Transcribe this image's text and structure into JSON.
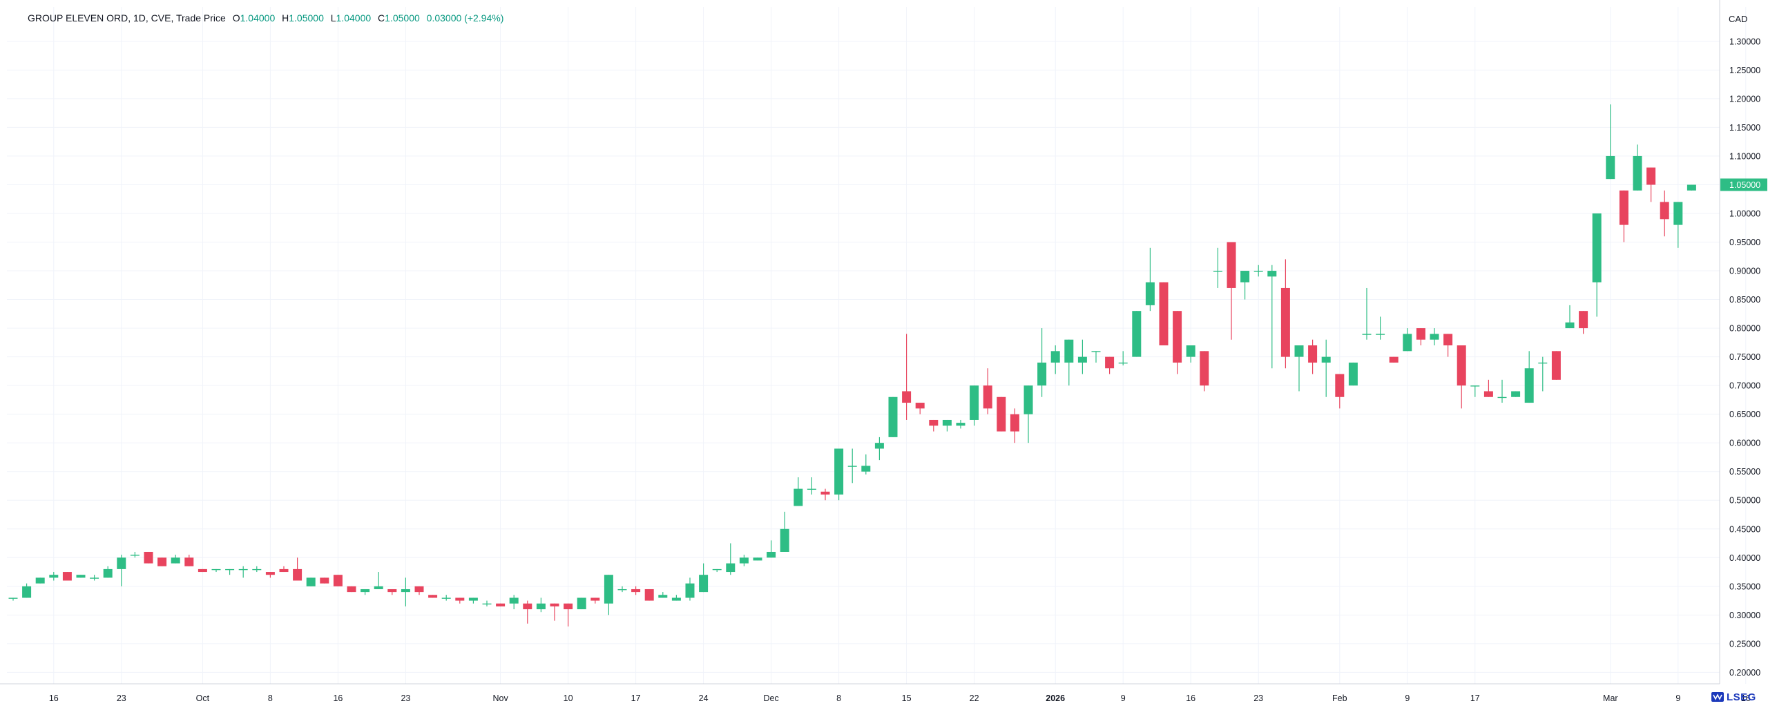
{
  "header": {
    "symbol": "GROUP ELEVEN ORD, 1D, CVE, Trade Price",
    "open_label": "O",
    "open": "1.04000",
    "high_label": "H",
    "high": "1.05000",
    "low_label": "L",
    "low": "1.04000",
    "close_label": "C",
    "close": "1.05000",
    "change": "0.03000 (+2.94%)"
  },
  "currency": "CAD",
  "logo_text": "LSEG",
  "colors": {
    "up": "#2ebd85",
    "down": "#e8445e",
    "grid": "#f0f3fa",
    "axis_text": "#131722",
    "last_price_bg": "#2ebd85"
  },
  "chart_data": {
    "type": "candlestick",
    "title": "GROUP ELEVEN ORD, 1D, CVE, Trade Price",
    "ylabel": "CAD",
    "ylim": [
      0.18,
      1.36
    ],
    "yticks": [
      "0.20000",
      "0.25000",
      "0.30000",
      "0.35000",
      "0.40000",
      "0.45000",
      "0.50000",
      "0.55000",
      "0.60000",
      "0.65000",
      "0.70000",
      "0.75000",
      "0.80000",
      "0.85000",
      "0.90000",
      "0.95000",
      "1.00000",
      "1.05000",
      "1.10000",
      "1.15000",
      "1.20000",
      "1.25000",
      "1.30000"
    ],
    "xticks": [
      {
        "label": "16",
        "i": 3
      },
      {
        "label": "23",
        "i": 8
      },
      {
        "label": "Oct",
        "i": 14
      },
      {
        "label": "8",
        "i": 19
      },
      {
        "label": "16",
        "i": 24
      },
      {
        "label": "23",
        "i": 29
      },
      {
        "label": "Nov",
        "i": 36
      },
      {
        "label": "10",
        "i": 41
      },
      {
        "label": "17",
        "i": 46
      },
      {
        "label": "24",
        "i": 51
      },
      {
        "label": "Dec",
        "i": 56
      },
      {
        "label": "8",
        "i": 61
      },
      {
        "label": "15",
        "i": 66
      },
      {
        "label": "22",
        "i": 71
      },
      {
        "label": "2026",
        "i": 77
      },
      {
        "label": "9",
        "i": 82
      },
      {
        "label": "16",
        "i": 87
      },
      {
        "label": "23",
        "i": 92
      },
      {
        "label": "Feb",
        "i": 98
      },
      {
        "label": "9",
        "i": 103
      },
      {
        "label": "17",
        "i": 108
      },
      {
        "label": "Mar",
        "i": 118
      },
      {
        "label": "9",
        "i": 123
      },
      {
        "label": "16",
        "i": 128
      }
    ],
    "last_price": "1.05000",
    "candles": [
      {
        "o": 0.33,
        "h": 0.33,
        "l": 0.325,
        "c": 0.33
      },
      {
        "o": 0.33,
        "h": 0.355,
        "l": 0.33,
        "c": 0.35
      },
      {
        "o": 0.355,
        "h": 0.365,
        "l": 0.355,
        "c": 0.365
      },
      {
        "o": 0.365,
        "h": 0.375,
        "l": 0.36,
        "c": 0.37
      },
      {
        "o": 0.375,
        "h": 0.375,
        "l": 0.36,
        "c": 0.36
      },
      {
        "o": 0.365,
        "h": 0.37,
        "l": 0.365,
        "c": 0.37
      },
      {
        "o": 0.365,
        "h": 0.37,
        "l": 0.36,
        "c": 0.365
      },
      {
        "o": 0.365,
        "h": 0.385,
        "l": 0.365,
        "c": 0.38
      },
      {
        "o": 0.38,
        "h": 0.405,
        "l": 0.35,
        "c": 0.4
      },
      {
        "o": 0.405,
        "h": 0.41,
        "l": 0.4,
        "c": 0.405
      },
      {
        "o": 0.41,
        "h": 0.41,
        "l": 0.39,
        "c": 0.39
      },
      {
        "o": 0.4,
        "h": 0.4,
        "l": 0.385,
        "c": 0.385
      },
      {
        "o": 0.39,
        "h": 0.405,
        "l": 0.39,
        "c": 0.4
      },
      {
        "o": 0.4,
        "h": 0.405,
        "l": 0.385,
        "c": 0.385
      },
      {
        "o": 0.38,
        "h": 0.38,
        "l": 0.375,
        "c": 0.375
      },
      {
        "o": 0.38,
        "h": 0.38,
        "l": 0.375,
        "c": 0.38
      },
      {
        "o": 0.38,
        "h": 0.38,
        "l": 0.37,
        "c": 0.38
      },
      {
        "o": 0.38,
        "h": 0.385,
        "l": 0.365,
        "c": 0.38
      },
      {
        "o": 0.38,
        "h": 0.385,
        "l": 0.375,
        "c": 0.38
      },
      {
        "o": 0.375,
        "h": 0.375,
        "l": 0.365,
        "c": 0.37
      },
      {
        "o": 0.38,
        "h": 0.385,
        "l": 0.375,
        "c": 0.375
      },
      {
        "o": 0.38,
        "h": 0.4,
        "l": 0.36,
        "c": 0.36
      },
      {
        "o": 0.35,
        "h": 0.365,
        "l": 0.35,
        "c": 0.365
      },
      {
        "o": 0.365,
        "h": 0.365,
        "l": 0.355,
        "c": 0.355
      },
      {
        "o": 0.37,
        "h": 0.37,
        "l": 0.35,
        "c": 0.35
      },
      {
        "o": 0.35,
        "h": 0.35,
        "l": 0.34,
        "c": 0.34
      },
      {
        "o": 0.34,
        "h": 0.345,
        "l": 0.335,
        "c": 0.345
      },
      {
        "o": 0.345,
        "h": 0.375,
        "l": 0.345,
        "c": 0.35
      },
      {
        "o": 0.345,
        "h": 0.345,
        "l": 0.335,
        "c": 0.34
      },
      {
        "o": 0.34,
        "h": 0.365,
        "l": 0.315,
        "c": 0.345
      },
      {
        "o": 0.35,
        "h": 0.35,
        "l": 0.335,
        "c": 0.34
      },
      {
        "o": 0.335,
        "h": 0.335,
        "l": 0.33,
        "c": 0.33
      },
      {
        "o": 0.33,
        "h": 0.335,
        "l": 0.325,
        "c": 0.33
      },
      {
        "o": 0.33,
        "h": 0.33,
        "l": 0.32,
        "c": 0.325
      },
      {
        "o": 0.325,
        "h": 0.33,
        "l": 0.32,
        "c": 0.33
      },
      {
        "o": 0.32,
        "h": 0.325,
        "l": 0.315,
        "c": 0.32
      },
      {
        "o": 0.32,
        "h": 0.32,
        "l": 0.315,
        "c": 0.315
      },
      {
        "o": 0.32,
        "h": 0.335,
        "l": 0.31,
        "c": 0.33
      },
      {
        "o": 0.32,
        "h": 0.325,
        "l": 0.285,
        "c": 0.31
      },
      {
        "o": 0.31,
        "h": 0.33,
        "l": 0.305,
        "c": 0.32
      },
      {
        "o": 0.32,
        "h": 0.32,
        "l": 0.29,
        "c": 0.315
      },
      {
        "o": 0.32,
        "h": 0.32,
        "l": 0.28,
        "c": 0.31
      },
      {
        "o": 0.31,
        "h": 0.33,
        "l": 0.31,
        "c": 0.33
      },
      {
        "o": 0.33,
        "h": 0.33,
        "l": 0.32,
        "c": 0.325
      },
      {
        "o": 0.32,
        "h": 0.37,
        "l": 0.3,
        "c": 0.37
      },
      {
        "o": 0.345,
        "h": 0.35,
        "l": 0.34,
        "c": 0.345
      },
      {
        "o": 0.345,
        "h": 0.35,
        "l": 0.335,
        "c": 0.34
      },
      {
        "o": 0.345,
        "h": 0.345,
        "l": 0.325,
        "c": 0.325
      },
      {
        "o": 0.33,
        "h": 0.34,
        "l": 0.33,
        "c": 0.335
      },
      {
        "o": 0.325,
        "h": 0.335,
        "l": 0.325,
        "c": 0.33
      },
      {
        "o": 0.33,
        "h": 0.365,
        "l": 0.325,
        "c": 0.355
      },
      {
        "o": 0.34,
        "h": 0.39,
        "l": 0.34,
        "c": 0.37
      },
      {
        "o": 0.38,
        "h": 0.38,
        "l": 0.375,
        "c": 0.38
      },
      {
        "o": 0.375,
        "h": 0.425,
        "l": 0.37,
        "c": 0.39
      },
      {
        "o": 0.39,
        "h": 0.405,
        "l": 0.385,
        "c": 0.4
      },
      {
        "o": 0.395,
        "h": 0.4,
        "l": 0.395,
        "c": 0.4
      },
      {
        "o": 0.4,
        "h": 0.43,
        "l": 0.4,
        "c": 0.41
      },
      {
        "o": 0.41,
        "h": 0.48,
        "l": 0.41,
        "c": 0.45
      },
      {
        "o": 0.49,
        "h": 0.54,
        "l": 0.49,
        "c": 0.52
      },
      {
        "o": 0.52,
        "h": 0.54,
        "l": 0.51,
        "c": 0.52
      },
      {
        "o": 0.515,
        "h": 0.52,
        "l": 0.5,
        "c": 0.51
      },
      {
        "o": 0.51,
        "h": 0.59,
        "l": 0.5,
        "c": 0.59
      },
      {
        "o": 0.56,
        "h": 0.59,
        "l": 0.53,
        "c": 0.56
      },
      {
        "o": 0.55,
        "h": 0.58,
        "l": 0.545,
        "c": 0.56
      },
      {
        "o": 0.59,
        "h": 0.61,
        "l": 0.57,
        "c": 0.6
      },
      {
        "o": 0.61,
        "h": 0.68,
        "l": 0.61,
        "c": 0.68
      },
      {
        "o": 0.69,
        "h": 0.79,
        "l": 0.64,
        "c": 0.67
      },
      {
        "o": 0.67,
        "h": 0.67,
        "l": 0.65,
        "c": 0.66
      },
      {
        "o": 0.64,
        "h": 0.64,
        "l": 0.62,
        "c": 0.63
      },
      {
        "o": 0.63,
        "h": 0.64,
        "l": 0.62,
        "c": 0.64
      },
      {
        "o": 0.63,
        "h": 0.64,
        "l": 0.625,
        "c": 0.635
      },
      {
        "o": 0.64,
        "h": 0.7,
        "l": 0.63,
        "c": 0.7
      },
      {
        "o": 0.7,
        "h": 0.73,
        "l": 0.65,
        "c": 0.66
      },
      {
        "o": 0.68,
        "h": 0.68,
        "l": 0.62,
        "c": 0.62
      },
      {
        "o": 0.65,
        "h": 0.66,
        "l": 0.6,
        "c": 0.62
      },
      {
        "o": 0.65,
        "h": 0.7,
        "l": 0.6,
        "c": 0.7
      },
      {
        "o": 0.7,
        "h": 0.8,
        "l": 0.68,
        "c": 0.74
      },
      {
        "o": 0.74,
        "h": 0.77,
        "l": 0.72,
        "c": 0.76
      },
      {
        "o": 0.74,
        "h": 0.78,
        "l": 0.7,
        "c": 0.78
      },
      {
        "o": 0.74,
        "h": 0.78,
        "l": 0.72,
        "c": 0.75
      },
      {
        "o": 0.76,
        "h": 0.76,
        "l": 0.74,
        "c": 0.76
      },
      {
        "o": 0.75,
        "h": 0.75,
        "l": 0.72,
        "c": 0.73
      },
      {
        "o": 0.74,
        "h": 0.76,
        "l": 0.735,
        "c": 0.74
      },
      {
        "o": 0.75,
        "h": 0.83,
        "l": 0.75,
        "c": 0.83
      },
      {
        "o": 0.84,
        "h": 0.94,
        "l": 0.83,
        "c": 0.88
      },
      {
        "o": 0.88,
        "h": 0.88,
        "l": 0.77,
        "c": 0.77
      },
      {
        "o": 0.83,
        "h": 0.83,
        "l": 0.72,
        "c": 0.74
      },
      {
        "o": 0.75,
        "h": 0.77,
        "l": 0.74,
        "c": 0.77
      },
      {
        "o": 0.76,
        "h": 0.76,
        "l": 0.69,
        "c": 0.7
      },
      {
        "o": 0.9,
        "h": 0.94,
        "l": 0.87,
        "c": 0.9
      },
      {
        "o": 0.95,
        "h": 0.95,
        "l": 0.78,
        "c": 0.87
      },
      {
        "o": 0.88,
        "h": 0.9,
        "l": 0.85,
        "c": 0.9
      },
      {
        "o": 0.9,
        "h": 0.91,
        "l": 0.89,
        "c": 0.9
      },
      {
        "o": 0.89,
        "h": 0.91,
        "l": 0.73,
        "c": 0.9
      },
      {
        "o": 0.87,
        "h": 0.92,
        "l": 0.73,
        "c": 0.75
      },
      {
        "o": 0.75,
        "h": 0.77,
        "l": 0.69,
        "c": 0.77
      },
      {
        "o": 0.77,
        "h": 0.78,
        "l": 0.72,
        "c": 0.74
      },
      {
        "o": 0.74,
        "h": 0.78,
        "l": 0.68,
        "c": 0.75
      },
      {
        "o": 0.72,
        "h": 0.72,
        "l": 0.66,
        "c": 0.68
      },
      {
        "o": 0.7,
        "h": 0.74,
        "l": 0.7,
        "c": 0.74
      },
      {
        "o": 0.79,
        "h": 0.87,
        "l": 0.78,
        "c": 0.79
      },
      {
        "o": 0.79,
        "h": 0.82,
        "l": 0.78,
        "c": 0.79
      },
      {
        "o": 0.75,
        "h": 0.75,
        "l": 0.74,
        "c": 0.74
      },
      {
        "o": 0.76,
        "h": 0.8,
        "l": 0.76,
        "c": 0.79
      },
      {
        "o": 0.8,
        "h": 0.8,
        "l": 0.77,
        "c": 0.78
      },
      {
        "o": 0.78,
        "h": 0.8,
        "l": 0.77,
        "c": 0.79
      },
      {
        "o": 0.79,
        "h": 0.79,
        "l": 0.75,
        "c": 0.77
      },
      {
        "o": 0.77,
        "h": 0.77,
        "l": 0.66,
        "c": 0.7
      },
      {
        "o": 0.7,
        "h": 0.7,
        "l": 0.68,
        "c": 0.7
      },
      {
        "o": 0.69,
        "h": 0.71,
        "l": 0.68,
        "c": 0.68
      },
      {
        "o": 0.68,
        "h": 0.71,
        "l": 0.67,
        "c": 0.68
      },
      {
        "o": 0.68,
        "h": 0.69,
        "l": 0.68,
        "c": 0.69
      },
      {
        "o": 0.67,
        "h": 0.76,
        "l": 0.67,
        "c": 0.73
      },
      {
        "o": 0.74,
        "h": 0.75,
        "l": 0.69,
        "c": 0.74
      },
      {
        "o": 0.76,
        "h": 0.76,
        "l": 0.71,
        "c": 0.71
      },
      {
        "o": 0.8,
        "h": 0.84,
        "l": 0.8,
        "c": 0.81
      },
      {
        "o": 0.83,
        "h": 0.83,
        "l": 0.79,
        "c": 0.8
      },
      {
        "o": 0.88,
        "h": 1.0,
        "l": 0.82,
        "c": 1.0
      },
      {
        "o": 1.06,
        "h": 1.19,
        "l": 1.06,
        "c": 1.1
      },
      {
        "o": 1.04,
        "h": 1.04,
        "l": 0.95,
        "c": 0.98
      },
      {
        "o": 1.04,
        "h": 1.12,
        "l": 1.04,
        "c": 1.1
      },
      {
        "o": 1.08,
        "h": 1.08,
        "l": 1.02,
        "c": 1.05
      },
      {
        "o": 1.02,
        "h": 1.04,
        "l": 0.96,
        "c": 0.99
      },
      {
        "o": 0.98,
        "h": 1.02,
        "l": 0.94,
        "c": 1.02
      },
      {
        "o": 1.04,
        "h": 1.05,
        "l": 1.04,
        "c": 1.05
      }
    ]
  }
}
